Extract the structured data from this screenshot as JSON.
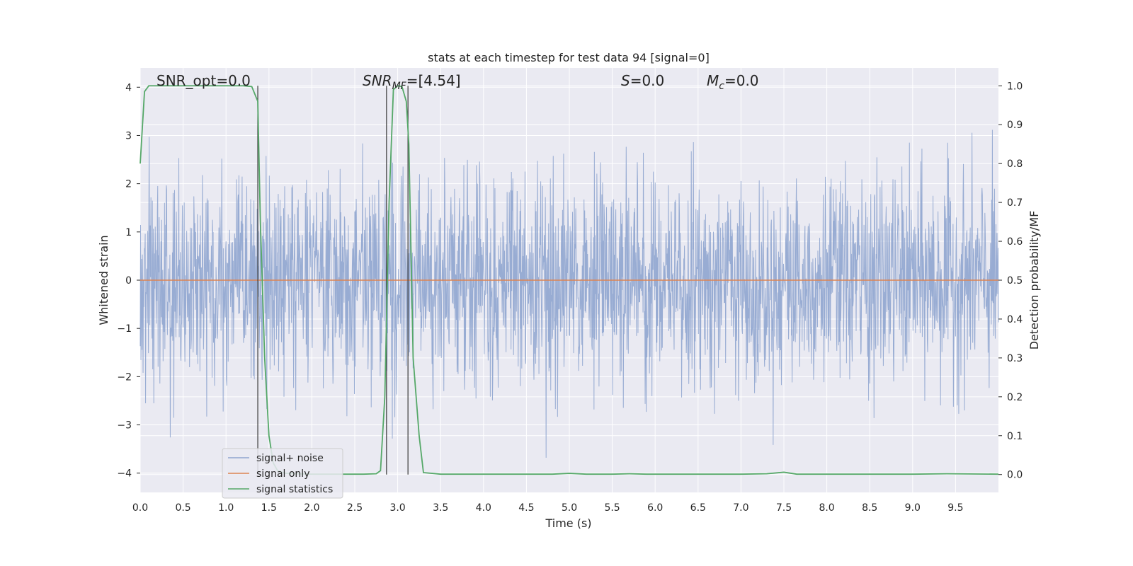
{
  "chart_data": {
    "type": "line",
    "title": "stats at each timestep for test data 94 [signal=0]",
    "xlabel": "Time (s)",
    "ylabel_left": "Whitened strain",
    "ylabel_right": "Detection probability/MF",
    "xlim": [
      0.0,
      10.0
    ],
    "ylim_left": [
      -4.4,
      4.4
    ],
    "ylim_right": [
      -0.046,
      1.046
    ],
    "x_ticks": [
      "0.0",
      "0.5",
      "1.0",
      "1.5",
      "2.0",
      "2.5",
      "3.0",
      "3.5",
      "4.0",
      "4.5",
      "5.0",
      "5.5",
      "6.0",
      "6.5",
      "7.0",
      "7.5",
      "8.0",
      "8.5",
      "9.0",
      "9.5"
    ],
    "y_ticks_left": [
      "4",
      "3",
      "2",
      "1",
      "0",
      "−1",
      "−2",
      "−3",
      "−4"
    ],
    "y_ticks_right": [
      "1.0",
      "0.9",
      "0.8",
      "0.7",
      "0.6",
      "0.5",
      "0.4",
      "0.3",
      "0.2",
      "0.1",
      "0.0"
    ],
    "annotations": {
      "snr_opt": "SNR_opt=0.0",
      "snr_mf_main": "SNR",
      "snr_mf_sub": "MF",
      "snr_mf_value": "=[4.54]",
      "s_main": "S",
      "s_value": "=0.0",
      "mc_main": "M",
      "mc_sub": "c",
      "mc_value": "=0.0"
    },
    "legend": {
      "position": "lower-left",
      "entries": [
        "signal+ noise",
        "signal only",
        "signal statistics"
      ]
    },
    "grid": true,
    "colors": {
      "noise": "#8fa5cf",
      "signal_only": "#dd8452",
      "statistics": "#55a868",
      "vlines": "#3a3a3a",
      "background": "#eaeaf2"
    },
    "series": [
      {
        "name": "signal+ noise",
        "axis": "left",
        "description_values": "whitened strain noise envelope",
        "envelope": {
          "typical_amplitude": 1.7,
          "peak_amplitude": 3.9
        }
      },
      {
        "name": "signal only",
        "axis": "left",
        "x": [
          0.0,
          10.0
        ],
        "y": [
          0.0,
          0.0
        ]
      },
      {
        "name": "signal statistics",
        "axis": "right",
        "x": [
          0.0,
          0.05,
          0.1,
          0.2,
          0.4,
          0.6,
          0.8,
          1.0,
          1.2,
          1.3,
          1.37,
          1.4,
          1.45,
          1.5,
          1.55,
          1.6,
          1.7,
          1.8,
          2.0,
          2.2,
          2.4,
          2.6,
          2.75,
          2.8,
          2.85,
          2.9,
          2.95,
          3.0,
          3.05,
          3.1,
          3.13,
          3.18,
          3.25,
          3.3,
          3.5,
          4.0,
          4.5,
          4.8,
          5.0,
          5.2,
          5.5,
          5.7,
          5.9,
          6.5,
          7.0,
          7.3,
          7.5,
          7.65,
          8.0,
          8.5,
          9.0,
          9.4,
          10.0
        ],
        "y": [
          0.8,
          0.985,
          1.0,
          1.0,
          1.0,
          1.0,
          1.0,
          1.0,
          1.0,
          0.998,
          0.96,
          0.65,
          0.3,
          0.1,
          0.03,
          0.01,
          0.003,
          0.002,
          0.001,
          0.001,
          0.001,
          0.001,
          0.002,
          0.01,
          0.2,
          0.7,
          0.99,
          1.0,
          0.998,
          0.96,
          0.85,
          0.3,
          0.1,
          0.005,
          0.001,
          0.001,
          0.001,
          0.001,
          0.003,
          0.001,
          0.001,
          0.002,
          0.001,
          0.001,
          0.001,
          0.002,
          0.006,
          0.001,
          0.001,
          0.001,
          0.001,
          0.002,
          0.001
        ]
      }
    ],
    "vertical_lines_x": [
      1.37,
      2.87,
      3.12
    ]
  }
}
